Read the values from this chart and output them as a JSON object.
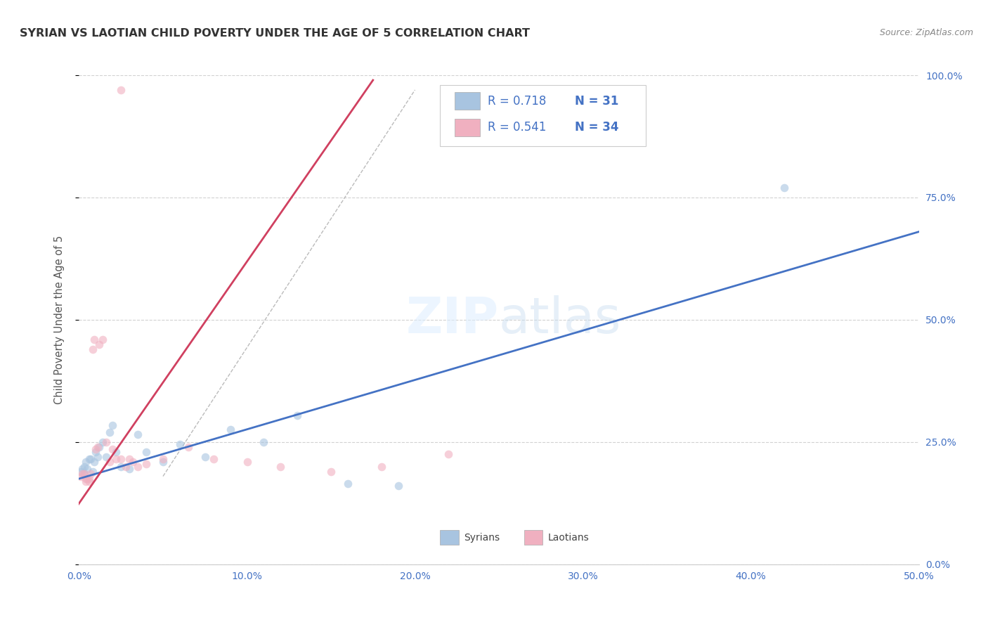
{
  "title": "SYRIAN VS LAOTIAN CHILD POVERTY UNDER THE AGE OF 5 CORRELATION CHART",
  "source": "Source: ZipAtlas.com",
  "tick_color": "#4472c4",
  "ylabel": "Child Poverty Under the Age of 5",
  "xlim": [
    0.0,
    0.5
  ],
  "ylim": [
    0.0,
    1.0
  ],
  "xticks": [
    0.0,
    0.1,
    0.2,
    0.3,
    0.4,
    0.5
  ],
  "yticks": [
    0.0,
    0.25,
    0.5,
    0.75,
    1.0
  ],
  "xtick_labels": [
    "0.0%",
    "10.0%",
    "20.0%",
    "30.0%",
    "40.0%",
    "50.0%"
  ],
  "ytick_labels": [
    "0.0%",
    "25.0%",
    "50.0%",
    "75.0%",
    "100.0%"
  ],
  "grid_color": "#cccccc",
  "background_color": "#ffffff",
  "watermark_zip": "ZIP",
  "watermark_atlas": "atlas",
  "legend_r_syrian": "R = 0.718",
  "legend_n_syrian": "N = 31",
  "legend_r_laotian": "R = 0.541",
  "legend_n_laotian": "N = 34",
  "syrian_color": "#a8c4e0",
  "laotian_color": "#f0b0c0",
  "syrian_line_color": "#4472c4",
  "laotian_line_color": "#d04060",
  "marker_size": 70,
  "syrian_x": [
    0.001,
    0.002,
    0.003,
    0.003,
    0.004,
    0.005,
    0.006,
    0.007,
    0.008,
    0.009,
    0.01,
    0.011,
    0.012,
    0.014,
    0.016,
    0.018,
    0.02,
    0.022,
    0.025,
    0.03,
    0.035,
    0.04,
    0.05,
    0.06,
    0.075,
    0.09,
    0.11,
    0.13,
    0.16,
    0.19,
    0.42
  ],
  "syrian_y": [
    0.19,
    0.195,
    0.2,
    0.185,
    0.21,
    0.195,
    0.215,
    0.215,
    0.19,
    0.21,
    0.23,
    0.22,
    0.24,
    0.25,
    0.22,
    0.27,
    0.285,
    0.23,
    0.2,
    0.195,
    0.265,
    0.23,
    0.21,
    0.245,
    0.22,
    0.275,
    0.25,
    0.305,
    0.165,
    0.16,
    0.77
  ],
  "laotian_x": [
    0.001,
    0.002,
    0.003,
    0.004,
    0.004,
    0.005,
    0.006,
    0.006,
    0.007,
    0.008,
    0.009,
    0.01,
    0.011,
    0.012,
    0.014,
    0.016,
    0.018,
    0.02,
    0.022,
    0.025,
    0.028,
    0.03,
    0.032,
    0.035,
    0.04,
    0.05,
    0.065,
    0.08,
    0.1,
    0.12,
    0.15,
    0.18,
    0.22,
    0.025
  ],
  "laotian_y": [
    0.18,
    0.185,
    0.185,
    0.17,
    0.175,
    0.175,
    0.17,
    0.175,
    0.185,
    0.44,
    0.46,
    0.235,
    0.24,
    0.45,
    0.46,
    0.25,
    0.21,
    0.235,
    0.215,
    0.215,
    0.2,
    0.215,
    0.21,
    0.2,
    0.205,
    0.215,
    0.24,
    0.215,
    0.21,
    0.2,
    0.19,
    0.2,
    0.225,
    0.97
  ],
  "syr_line_x0": 0.0,
  "syr_line_y0": 0.175,
  "syr_line_x1": 0.5,
  "syr_line_y1": 0.68,
  "lao_line_x0": -0.005,
  "lao_line_y0": 0.1,
  "lao_line_x1": 0.175,
  "lao_line_y1": 0.99,
  "ref_line_x0": 0.05,
  "ref_line_y0": 0.18,
  "ref_line_x1": 0.2,
  "ref_line_y1": 0.97
}
